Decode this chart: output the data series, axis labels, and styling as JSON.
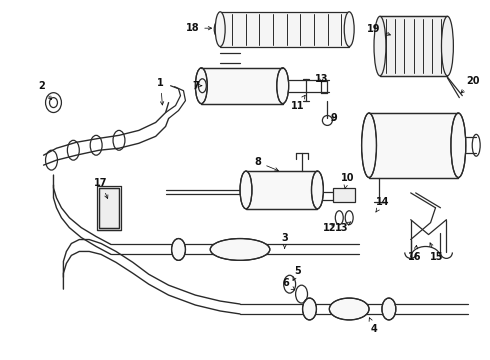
{
  "bg_color": "#ffffff",
  "line_color": "#2a2a2a",
  "text_color": "#111111",
  "fig_width": 4.9,
  "fig_height": 3.6,
  "dpi": 100
}
